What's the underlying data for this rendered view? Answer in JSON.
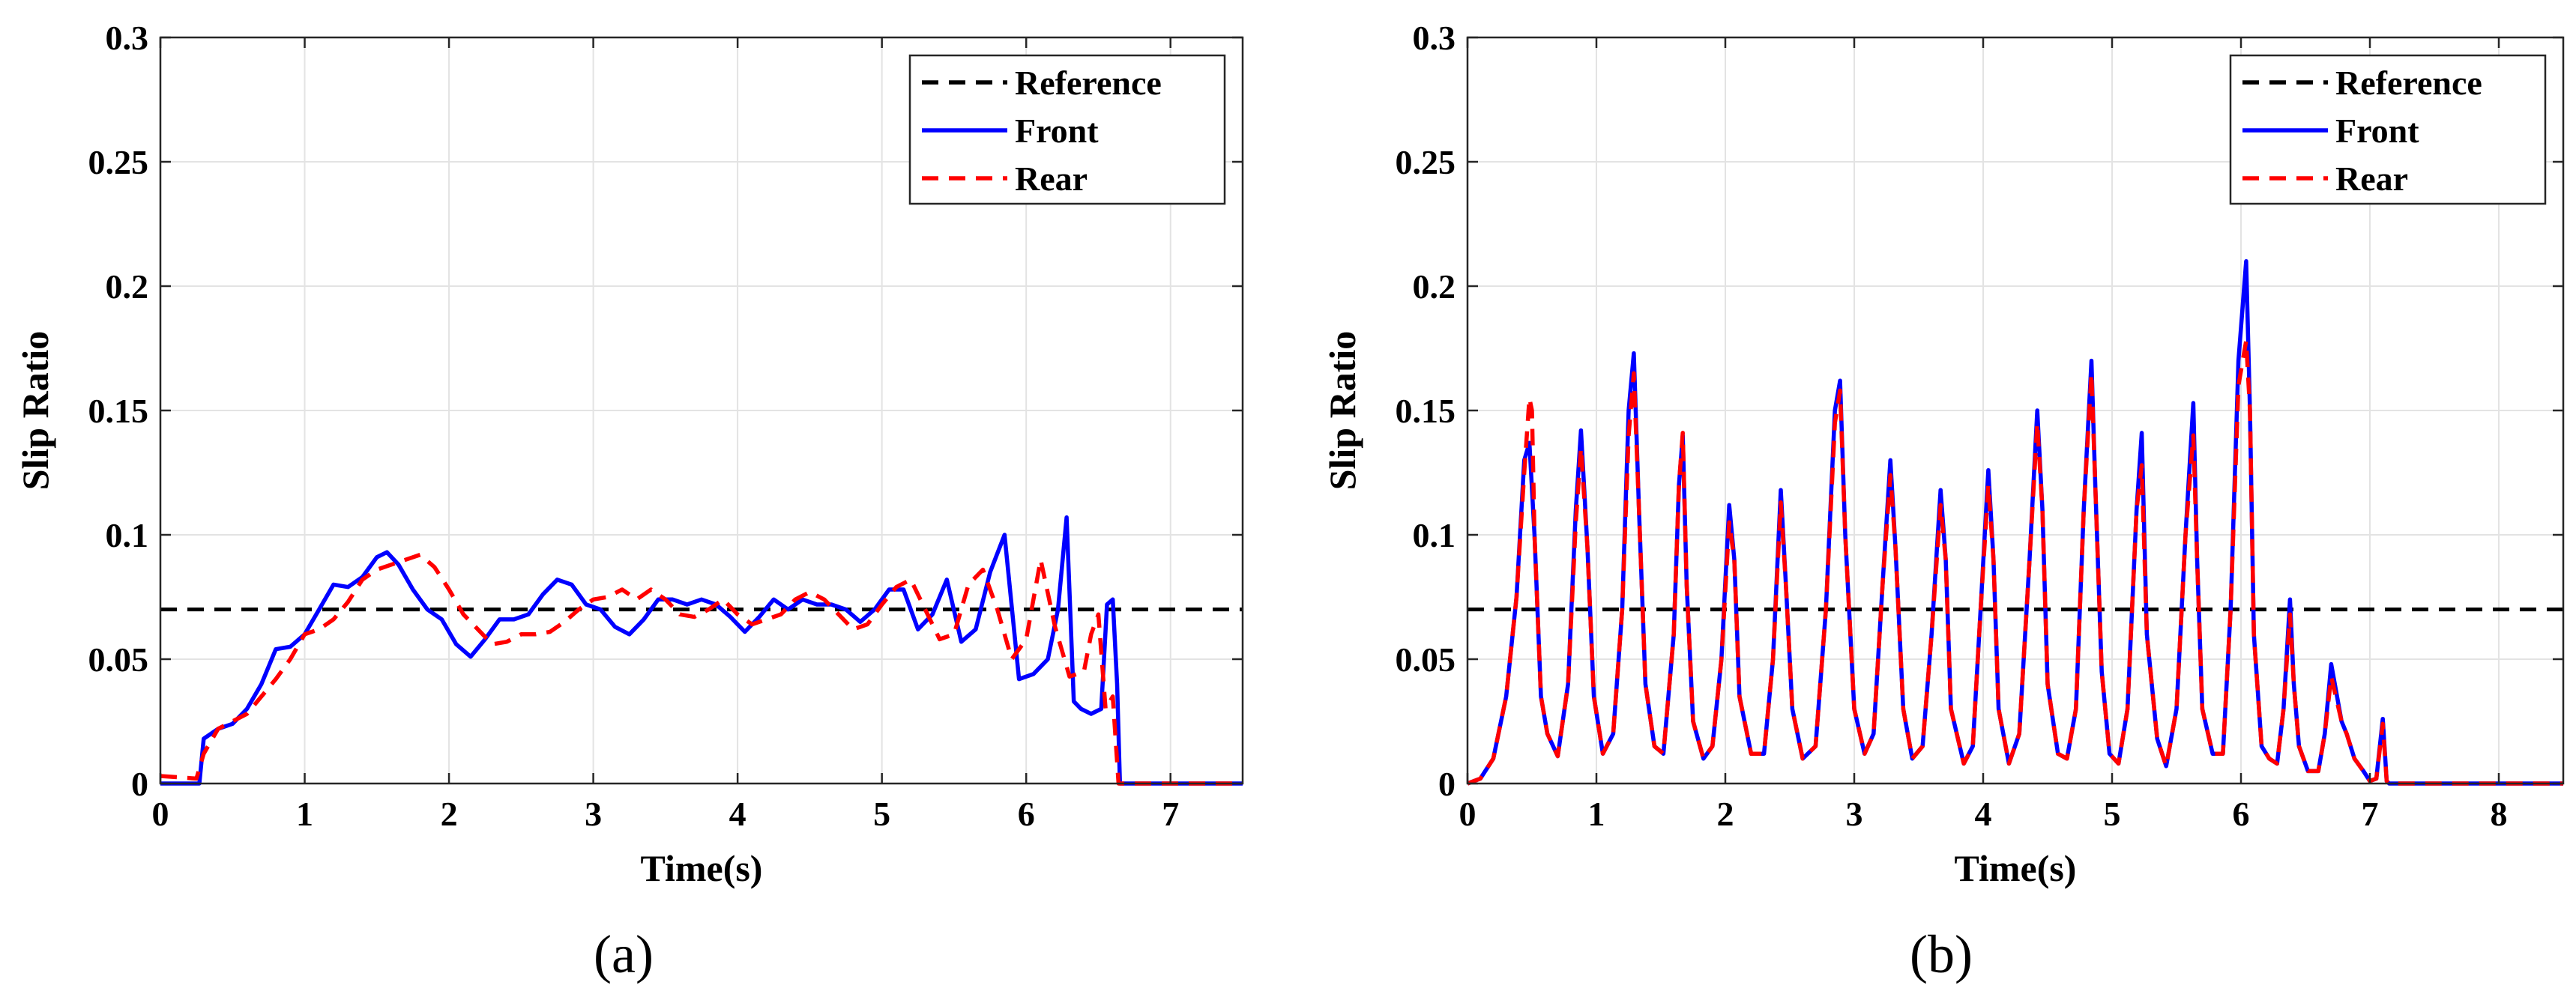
{
  "chart_data": [
    {
      "type": "line",
      "caption": "(a)",
      "xlabel": "Time(s)",
      "ylabel": "Slip Ratio",
      "xlim": [
        0,
        7.5
      ],
      "ylim": [
        0,
        0.3
      ],
      "xticks": [
        0,
        1,
        2,
        3,
        4,
        5,
        6,
        7
      ],
      "xtick_labels": [
        "0",
        "1",
        "2",
        "3",
        "4",
        "5",
        "6",
        "7"
      ],
      "yticks": [
        0,
        0.05,
        0.1,
        0.15,
        0.2,
        0.25,
        0.3
      ],
      "ytick_labels": [
        "0",
        "0.05",
        "0.1",
        "0.15",
        "0.2",
        "0.25",
        "0.3"
      ],
      "grid": true,
      "legend_position": "top-right",
      "series": [
        {
          "name": "Reference",
          "color": "#000000",
          "style": "dashed",
          "x": [
            0,
            7.5
          ],
          "y": [
            0.07,
            0.07
          ]
        },
        {
          "name": "Front",
          "color": "#0000ff",
          "style": "solid",
          "x": [
            0,
            0.27,
            0.3,
            0.4,
            0.5,
            0.6,
            0.7,
            0.8,
            0.9,
            1.0,
            1.1,
            1.2,
            1.3,
            1.4,
            1.5,
            1.57,
            1.65,
            1.75,
            1.85,
            1.95,
            2.05,
            2.15,
            2.25,
            2.35,
            2.45,
            2.55,
            2.65,
            2.75,
            2.85,
            2.95,
            3.05,
            3.15,
            3.25,
            3.35,
            3.45,
            3.55,
            3.65,
            3.75,
            3.85,
            3.95,
            4.05,
            4.15,
            4.25,
            4.35,
            4.45,
            4.55,
            4.65,
            4.75,
            4.85,
            4.95,
            5.05,
            5.15,
            5.25,
            5.35,
            5.45,
            5.55,
            5.65,
            5.75,
            5.85,
            5.95,
            6.05,
            6.15,
            6.22,
            6.28,
            6.33,
            6.38,
            6.45,
            6.52,
            6.56,
            6.6,
            6.63,
            6.65,
            7.5
          ],
          "y": [
            0,
            0,
            0.018,
            0.022,
            0.024,
            0.03,
            0.04,
            0.054,
            0.055,
            0.06,
            0.07,
            0.08,
            0.079,
            0.083,
            0.091,
            0.093,
            0.088,
            0.078,
            0.07,
            0.066,
            0.056,
            0.051,
            0.058,
            0.066,
            0.066,
            0.068,
            0.076,
            0.082,
            0.08,
            0.072,
            0.07,
            0.063,
            0.06,
            0.066,
            0.074,
            0.074,
            0.072,
            0.074,
            0.072,
            0.067,
            0.061,
            0.067,
            0.074,
            0.07,
            0.074,
            0.072,
            0.072,
            0.07,
            0.065,
            0.07,
            0.078,
            0.078,
            0.062,
            0.068,
            0.082,
            0.057,
            0.062,
            0.085,
            0.1,
            0.042,
            0.044,
            0.05,
            0.07,
            0.107,
            0.033,
            0.03,
            0.028,
            0.03,
            0.072,
            0.074,
            0.04,
            0,
            0
          ]
        },
        {
          "name": "Rear",
          "color": "#ff0000",
          "style": "dashed",
          "x": [
            0,
            0.25,
            0.3,
            0.4,
            0.5,
            0.6,
            0.7,
            0.8,
            0.9,
            1.0,
            1.1,
            1.2,
            1.3,
            1.4,
            1.5,
            1.6,
            1.7,
            1.8,
            1.9,
            2.0,
            2.1,
            2.2,
            2.3,
            2.4,
            2.5,
            2.6,
            2.7,
            2.8,
            2.9,
            3.0,
            3.1,
            3.2,
            3.3,
            3.4,
            3.5,
            3.6,
            3.7,
            3.8,
            3.9,
            4.0,
            4.1,
            4.2,
            4.3,
            4.4,
            4.5,
            4.6,
            4.7,
            4.8,
            4.9,
            5.0,
            5.1,
            5.2,
            5.3,
            5.4,
            5.5,
            5.6,
            5.7,
            5.8,
            5.9,
            6.0,
            6.1,
            6.2,
            6.3,
            6.4,
            6.45,
            6.5,
            6.55,
            6.6,
            6.64,
            7.5
          ],
          "y": [
            0.003,
            0.002,
            0.012,
            0.022,
            0.025,
            0.028,
            0.035,
            0.042,
            0.05,
            0.06,
            0.062,
            0.066,
            0.073,
            0.082,
            0.086,
            0.088,
            0.09,
            0.092,
            0.087,
            0.078,
            0.068,
            0.062,
            0.056,
            0.057,
            0.06,
            0.06,
            0.061,
            0.065,
            0.07,
            0.074,
            0.075,
            0.078,
            0.074,
            0.078,
            0.074,
            0.068,
            0.067,
            0.07,
            0.074,
            0.068,
            0.064,
            0.066,
            0.068,
            0.074,
            0.077,
            0.074,
            0.068,
            0.062,
            0.064,
            0.072,
            0.079,
            0.082,
            0.07,
            0.058,
            0.06,
            0.08,
            0.086,
            0.07,
            0.05,
            0.058,
            0.09,
            0.063,
            0.043,
            0.045,
            0.06,
            0.068,
            0.03,
            0.035,
            0,
            0
          ]
        }
      ]
    },
    {
      "type": "line",
      "caption": "(b)",
      "xlabel": "Time(s)",
      "ylabel": "Slip Ratio",
      "xlim": [
        0,
        8.5
      ],
      "ylim": [
        0,
        0.3
      ],
      "xticks": [
        0,
        1,
        2,
        3,
        4,
        5,
        6,
        7,
        8
      ],
      "xtick_labels": [
        "0",
        "1",
        "2",
        "3",
        "4",
        "5",
        "6",
        "7",
        "8"
      ],
      "yticks": [
        0,
        0.05,
        0.1,
        0.15,
        0.2,
        0.25,
        0.3
      ],
      "ytick_labels": [
        "0",
        "0.05",
        "0.1",
        "0.15",
        "0.2",
        "0.25",
        "0.3"
      ],
      "grid": true,
      "legend_position": "top-right",
      "series": [
        {
          "name": "Reference",
          "color": "#000000",
          "style": "dashed",
          "x": [
            0,
            8.5
          ],
          "y": [
            0.07,
            0.07
          ]
        },
        {
          "name": "Front",
          "color": "#0000ff",
          "style": "solid",
          "x": [
            0,
            0.1,
            0.2,
            0.3,
            0.38,
            0.44,
            0.48,
            0.52,
            0.57,
            0.62,
            0.7,
            0.78,
            0.84,
            0.88,
            0.93,
            0.98,
            1.05,
            1.13,
            1.2,
            1.25,
            1.29,
            1.33,
            1.38,
            1.45,
            1.52,
            1.6,
            1.64,
            1.67,
            1.7,
            1.75,
            1.83,
            1.9,
            1.97,
            2.03,
            2.07,
            2.11,
            2.2,
            2.3,
            2.37,
            2.43,
            2.47,
            2.52,
            2.6,
            2.7,
            2.78,
            2.85,
            2.89,
            2.93,
            3.0,
            3.08,
            3.15,
            3.22,
            3.28,
            3.32,
            3.38,
            3.45,
            3.53,
            3.6,
            3.67,
            3.71,
            3.75,
            3.85,
            3.92,
            3.98,
            4.04,
            4.08,
            4.12,
            4.2,
            4.28,
            4.36,
            4.42,
            4.46,
            4.5,
            4.58,
            4.65,
            4.72,
            4.78,
            4.84,
            4.87,
            4.92,
            4.98,
            5.05,
            5.12,
            5.19,
            5.23,
            5.27,
            5.35,
            5.42,
            5.5,
            5.57,
            5.63,
            5.66,
            5.7,
            5.78,
            5.86,
            5.92,
            5.98,
            6.04,
            6.07,
            6.1,
            6.16,
            6.22,
            6.28,
            6.33,
            6.38,
            6.41,
            6.45,
            6.52,
            6.6,
            6.65,
            6.7,
            6.78,
            6.82,
            6.88,
            6.95,
            7.0,
            7.05,
            7.1,
            7.13,
            7.15,
            8.5
          ],
          "y": [
            0,
            0.002,
            0.01,
            0.035,
            0.075,
            0.13,
            0.137,
            0.1,
            0.035,
            0.02,
            0.011,
            0.04,
            0.11,
            0.142,
            0.095,
            0.035,
            0.012,
            0.02,
            0.07,
            0.15,
            0.173,
            0.11,
            0.04,
            0.015,
            0.012,
            0.06,
            0.12,
            0.14,
            0.08,
            0.025,
            0.01,
            0.015,
            0.05,
            0.112,
            0.09,
            0.035,
            0.012,
            0.012,
            0.05,
            0.118,
            0.08,
            0.03,
            0.01,
            0.015,
            0.07,
            0.15,
            0.162,
            0.1,
            0.03,
            0.012,
            0.02,
            0.08,
            0.13,
            0.095,
            0.03,
            0.01,
            0.015,
            0.06,
            0.118,
            0.09,
            0.03,
            0.008,
            0.015,
            0.07,
            0.126,
            0.09,
            0.03,
            0.008,
            0.02,
            0.09,
            0.15,
            0.11,
            0.04,
            0.012,
            0.01,
            0.03,
            0.11,
            0.17,
            0.12,
            0.045,
            0.012,
            0.008,
            0.03,
            0.11,
            0.141,
            0.06,
            0.018,
            0.007,
            0.03,
            0.1,
            0.153,
            0.09,
            0.03,
            0.012,
            0.012,
            0.07,
            0.17,
            0.21,
            0.15,
            0.06,
            0.015,
            0.01,
            0.008,
            0.03,
            0.074,
            0.04,
            0.015,
            0.005,
            0.005,
            0.02,
            0.048,
            0.025,
            0.02,
            0.01,
            0.005,
            0.001,
            0.002,
            0.026,
            0.001,
            0,
            0
          ]
        },
        {
          "name": "Rear",
          "color": "#ff0000",
          "style": "dashed",
          "x": [
            0,
            0.1,
            0.2,
            0.3,
            0.38,
            0.44,
            0.48,
            0.5,
            0.52,
            0.57,
            0.62,
            0.7,
            0.78,
            0.84,
            0.88,
            0.93,
            0.98,
            1.05,
            1.13,
            1.2,
            1.25,
            1.29,
            1.33,
            1.38,
            1.45,
            1.52,
            1.6,
            1.64,
            1.67,
            1.7,
            1.75,
            1.83,
            1.9,
            1.97,
            2.03,
            2.07,
            2.11,
            2.2,
            2.3,
            2.37,
            2.43,
            2.47,
            2.52,
            2.6,
            2.7,
            2.78,
            2.85,
            2.89,
            2.93,
            3.0,
            3.08,
            3.15,
            3.22,
            3.28,
            3.32,
            3.38,
            3.45,
            3.53,
            3.6,
            3.67,
            3.71,
            3.75,
            3.85,
            3.92,
            3.98,
            4.04,
            4.08,
            4.12,
            4.2,
            4.28,
            4.36,
            4.42,
            4.46,
            4.5,
            4.58,
            4.65,
            4.72,
            4.78,
            4.84,
            4.87,
            4.92,
            4.98,
            5.05,
            5.12,
            5.19,
            5.23,
            5.27,
            5.35,
            5.42,
            5.5,
            5.57,
            5.63,
            5.66,
            5.7,
            5.78,
            5.86,
            5.92,
            5.98,
            6.04,
            6.07,
            6.1,
            6.16,
            6.22,
            6.28,
            6.33,
            6.38,
            6.41,
            6.45,
            6.52,
            6.6,
            6.65,
            6.7,
            6.78,
            6.82,
            6.88,
            6.95,
            7.0,
            7.05,
            7.1,
            7.13,
            7.15,
            8.5
          ],
          "y": [
            0,
            0.002,
            0.01,
            0.035,
            0.075,
            0.125,
            0.155,
            0.15,
            0.1,
            0.035,
            0.02,
            0.011,
            0.04,
            0.105,
            0.135,
            0.095,
            0.035,
            0.012,
            0.02,
            0.07,
            0.14,
            0.165,
            0.11,
            0.04,
            0.015,
            0.012,
            0.06,
            0.12,
            0.141,
            0.08,
            0.025,
            0.01,
            0.015,
            0.05,
            0.105,
            0.09,
            0.035,
            0.012,
            0.012,
            0.05,
            0.113,
            0.08,
            0.03,
            0.01,
            0.015,
            0.07,
            0.145,
            0.158,
            0.1,
            0.03,
            0.012,
            0.02,
            0.08,
            0.124,
            0.095,
            0.03,
            0.01,
            0.015,
            0.06,
            0.112,
            0.09,
            0.03,
            0.008,
            0.015,
            0.07,
            0.12,
            0.09,
            0.03,
            0.008,
            0.02,
            0.09,
            0.145,
            0.11,
            0.04,
            0.012,
            0.01,
            0.03,
            0.11,
            0.165,
            0.12,
            0.045,
            0.012,
            0.008,
            0.03,
            0.11,
            0.128,
            0.06,
            0.018,
            0.007,
            0.03,
            0.1,
            0.14,
            0.09,
            0.03,
            0.012,
            0.012,
            0.07,
            0.16,
            0.178,
            0.15,
            0.06,
            0.015,
            0.01,
            0.008,
            0.03,
            0.068,
            0.04,
            0.015,
            0.005,
            0.005,
            0.02,
            0.043,
            0.025,
            0.02,
            0.01,
            0.005,
            0.001,
            0.002,
            0.024,
            0.001,
            0,
            0
          ]
        }
      ]
    }
  ]
}
